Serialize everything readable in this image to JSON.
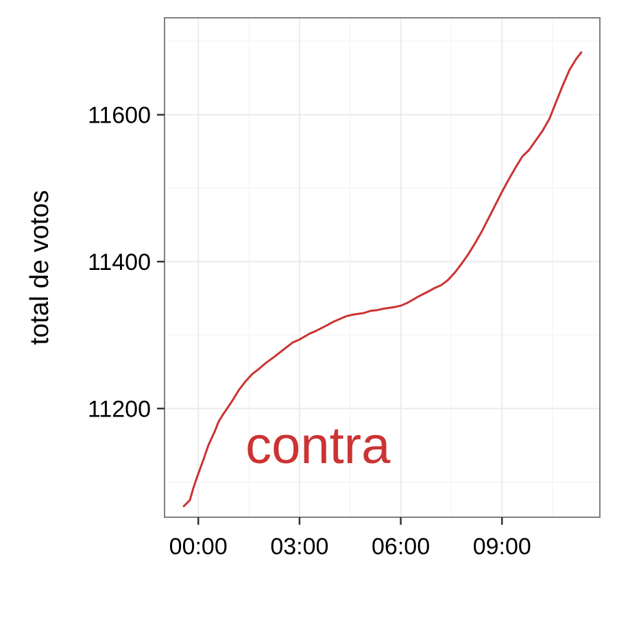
{
  "chart_data": {
    "type": "line",
    "title": "",
    "xlabel": "",
    "ylabel": "total de votos",
    "x_tick_labels": [
      "00:00",
      "03:00",
      "06:00",
      "09:00"
    ],
    "x_tick_hours": [
      0,
      3,
      6,
      9
    ],
    "y_tick_labels": [
      "11200",
      "11400",
      "11600"
    ],
    "y_tick_values": [
      11200,
      11400,
      11600
    ],
    "xlim": [
      -1.0,
      11.9
    ],
    "ylim": [
      11052,
      11732
    ],
    "grid": true,
    "legend": "none",
    "annotation": {
      "text": "contra",
      "x": 1.4,
      "y": 11150
    },
    "series": [
      {
        "color": "#cc3333",
        "x": [
          -0.43,
          -0.3,
          -0.25,
          -0.15,
          -0.05,
          0.15,
          0.3,
          0.5,
          0.6,
          0.75,
          0.9,
          1.0,
          1.2,
          1.4,
          1.6,
          1.8,
          2.0,
          2.3,
          2.6,
          2.8,
          3.0,
          3.3,
          3.5,
          3.8,
          4.0,
          4.2,
          4.4,
          4.6,
          4.9,
          5.1,
          5.3,
          5.5,
          5.8,
          6.0,
          6.2,
          6.5,
          6.8,
          7.0,
          7.2,
          7.4,
          7.6,
          7.8,
          8.0,
          8.2,
          8.4,
          8.6,
          8.8,
          9.0,
          9.2,
          9.4,
          9.6,
          9.8,
          10.0,
          10.2,
          10.4,
          10.6,
          10.8,
          11.0,
          11.2,
          11.35
        ],
        "y": [
          11067,
          11073,
          11075,
          11091,
          11105,
          11130,
          11150,
          11170,
          11182,
          11193,
          11203,
          11210,
          11225,
          11237,
          11247,
          11254,
          11262,
          11272,
          11283,
          11290,
          11294,
          11302,
          11306,
          11313,
          11318,
          11322,
          11326,
          11328,
          11330,
          11333,
          11334,
          11336,
          11338,
          11340,
          11344,
          11352,
          11359,
          11364,
          11368,
          11375,
          11385,
          11397,
          11410,
          11425,
          11441,
          11459,
          11477,
          11495,
          11512,
          11528,
          11543,
          11552,
          11565,
          11578,
          11594,
          11617,
          11640,
          11661,
          11676,
          11685
        ]
      }
    ],
    "colors": {
      "line": "#cc3333",
      "annotation": "#cc3333",
      "grid_major": "#ebebeb",
      "grid_minor": "#f5f5f5",
      "panel_border": "#7f7f7f",
      "tick_mark": "#333333"
    }
  }
}
